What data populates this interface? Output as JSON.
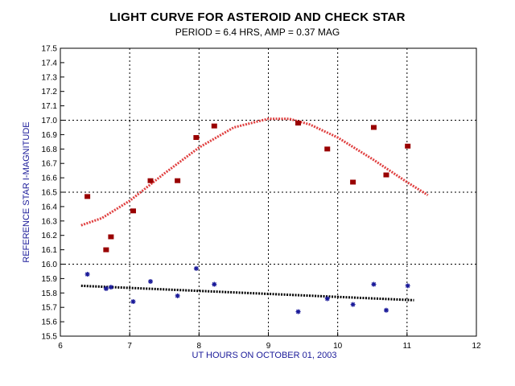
{
  "chart_data": {
    "type": "scatter",
    "title": "LIGHT CURVE FOR ASTEROID AND CHECK STAR",
    "subtitle": "PERIOD = 6.4 HRS, AMP = 0.37 MAG",
    "xlabel": "UT HOURS ON OCTOBER 01, 2003",
    "ylabel": "REFERENCE STAR I-MAGNITUDE",
    "xlim": [
      6,
      12
    ],
    "ylim": [
      15.5,
      17.5
    ],
    "x_ticks": [
      "6",
      "7",
      "8",
      "9",
      "10",
      "11",
      "12"
    ],
    "y_ticks": [
      "15.5",
      "15.6",
      "15.7",
      "15.8",
      "15.9",
      "16.0",
      "16.1",
      "16.2",
      "16.3",
      "16.4",
      "16.5",
      "16.6",
      "16.7",
      "16.8",
      "16.9",
      "17.0",
      "17.1",
      "17.2",
      "17.3",
      "17.4",
      "17.5"
    ],
    "grid": true,
    "series": [
      {
        "marker": "square",
        "color": "#990000",
        "x": [
          6.39,
          6.66,
          6.73,
          7.05,
          7.3,
          7.69,
          7.96,
          8.22,
          9.43,
          9.85,
          10.22,
          10.52,
          10.7,
          11.01
        ],
        "y": [
          16.47,
          16.1,
          16.19,
          16.37,
          16.58,
          16.58,
          16.88,
          16.96,
          16.98,
          16.8,
          16.57,
          16.95,
          16.62,
          16.82
        ]
      },
      {
        "marker": "asterisk",
        "color": "#1a1a99",
        "x": [
          6.39,
          6.66,
          6.73,
          7.05,
          7.3,
          7.69,
          7.96,
          8.22,
          9.43,
          9.85,
          10.22,
          10.52,
          10.7,
          11.01
        ],
        "y": [
          15.93,
          15.83,
          15.84,
          15.74,
          15.88,
          15.78,
          15.97,
          15.86,
          15.67,
          15.76,
          15.72,
          15.86,
          15.68,
          15.85
        ]
      }
    ],
    "fits": [
      {
        "style": "dotted",
        "color": "#e04040",
        "x": [
          6.3,
          6.6,
          7.0,
          7.5,
          8.0,
          8.5,
          9.0,
          9.3,
          9.6,
          10.0,
          10.5,
          11.0,
          11.3
        ],
        "y": [
          16.27,
          16.32,
          16.44,
          16.63,
          16.81,
          16.95,
          17.01,
          17.01,
          16.97,
          16.88,
          16.73,
          16.57,
          16.48
        ]
      },
      {
        "style": "dotted",
        "color": "#000000",
        "x": [
          6.3,
          11.1
        ],
        "y": [
          15.85,
          15.75
        ]
      }
    ]
  }
}
